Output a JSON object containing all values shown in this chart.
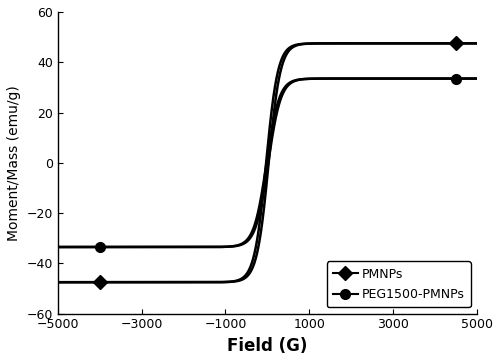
{
  "title": "",
  "xlabel": "Field (G)",
  "ylabel": "Moment/Mass (emu/g)",
  "xlim": [
    -5000,
    5000
  ],
  "ylim": [
    -60,
    60
  ],
  "xticks": [
    -5000,
    -3000,
    -1000,
    1000,
    3000,
    5000
  ],
  "yticks": [
    -60,
    -40,
    -20,
    0,
    20,
    40,
    60
  ],
  "curve1_sat": 47.5,
  "curve1_coercivity": 30,
  "curve1_slope": 280,
  "curve2_sat": 33.5,
  "curve2_coercivity": 20,
  "curve2_slope": 300,
  "marker1_x_neg": -4000,
  "marker1_x_pos": 4500,
  "marker2_x_neg": -4000,
  "marker2_x_pos": 4500,
  "line_color": "#000000",
  "bg_color": "#ffffff",
  "legend_labels": [
    "PMNPs",
    "PEG1500-PMNPs"
  ],
  "xlabel_fontsize": 12,
  "ylabel_fontsize": 10,
  "tick_fontsize": 9,
  "legend_fontsize": 9,
  "linewidth": 1.8
}
